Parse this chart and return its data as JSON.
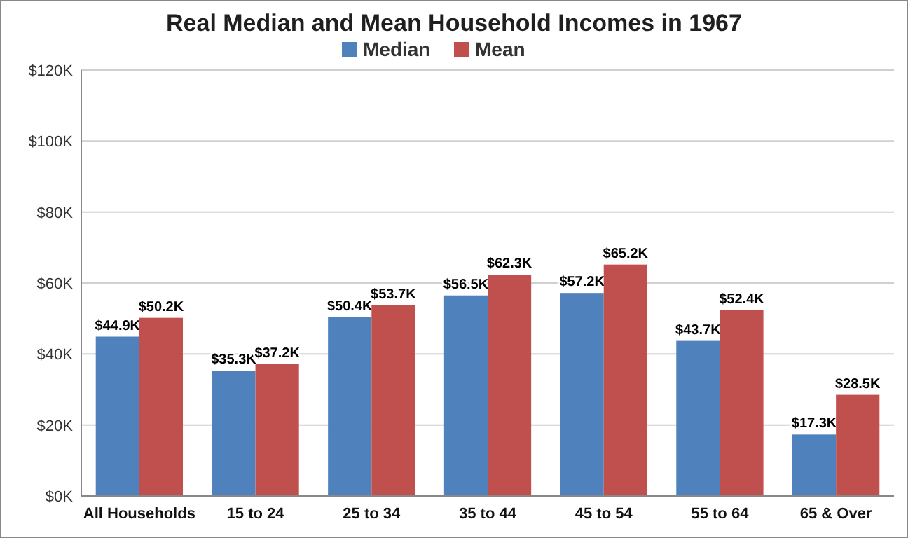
{
  "chart_data": {
    "type": "bar",
    "title": "Real Median and Mean Household Incomes in 1967",
    "categories": [
      "All Households",
      "15 to 24",
      "25 to 34",
      "35 to 44",
      "45 to 54",
      "55 to 64",
      "65 & Over"
    ],
    "series": [
      {
        "name": "Median",
        "color": "#4f81bd",
        "values": [
          44.9,
          35.3,
          50.4,
          56.5,
          57.2,
          43.7,
          17.3
        ],
        "value_labels": [
          "$44.9K",
          "$35.3K",
          "$50.4K",
          "$56.5K",
          "$57.2K",
          "$43.7K",
          "$17.3K"
        ]
      },
      {
        "name": "Mean",
        "color": "#c0504d",
        "values": [
          50.2,
          37.2,
          53.7,
          62.3,
          65.2,
          52.4,
          28.5
        ],
        "value_labels": [
          "$50.2K",
          "$37.2K",
          "$53.7K",
          "$62.3K",
          "$65.2K",
          "$52.4K",
          "$28.5K"
        ]
      }
    ],
    "ylim": [
      0,
      120
    ],
    "yticks": [
      {
        "value": 0,
        "label": "$0K"
      },
      {
        "value": 20,
        "label": "$20K"
      },
      {
        "value": 40,
        "label": "$40K"
      },
      {
        "value": 60,
        "label": "$60K"
      },
      {
        "value": 80,
        "label": "$80K"
      },
      {
        "value": 100,
        "label": "$100K"
      },
      {
        "value": 120,
        "label": "$120K"
      }
    ],
    "grid": "y",
    "legend": "top"
  }
}
